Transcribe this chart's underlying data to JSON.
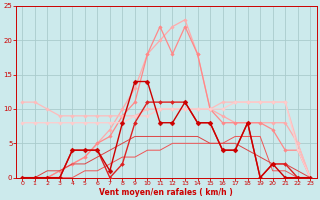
{
  "bg_color": "#cceaec",
  "grid_color": "#aacccc",
  "text_color": "#cc0000",
  "xlabel": "Vent moyen/en rafales ( km/h )",
  "xlim": [
    -0.5,
    23.5
  ],
  "ylim": [
    0,
    25
  ],
  "yticks": [
    0,
    5,
    10,
    15,
    20,
    25
  ],
  "xticks": [
    0,
    1,
    2,
    3,
    4,
    5,
    6,
    7,
    8,
    9,
    10,
    11,
    12,
    13,
    14,
    15,
    16,
    17,
    18,
    19,
    20,
    21,
    22,
    23
  ],
  "series": [
    {
      "x": [
        0,
        1,
        2,
        3,
        4,
        5,
        6,
        7,
        8,
        9,
        10,
        11,
        12,
        13,
        14,
        15,
        16,
        17,
        18,
        19,
        20,
        21,
        22,
        23
      ],
      "y": [
        0,
        0,
        0,
        1,
        2,
        3,
        5,
        7,
        10,
        13,
        18,
        20,
        22,
        23,
        18,
        10,
        9,
        8,
        8,
        8,
        8,
        8,
        5,
        0
      ],
      "color": "#ffaaaa",
      "lw": 0.9,
      "marker": "D",
      "ms": 1.8,
      "zorder": 2
    },
    {
      "x": [
        0,
        1,
        2,
        3,
        4,
        5,
        6,
        7,
        8,
        9,
        10,
        11,
        12,
        13,
        14,
        15,
        16,
        17,
        18,
        19,
        20,
        21,
        22,
        23
      ],
      "y": [
        0,
        0,
        0,
        1,
        2,
        3,
        5,
        6,
        9,
        11,
        18,
        22,
        18,
        22,
        18,
        10,
        8,
        8,
        8,
        8,
        7,
        4,
        4,
        0
      ],
      "color": "#ff8888",
      "lw": 0.9,
      "marker": "D",
      "ms": 1.8,
      "zorder": 2
    },
    {
      "x": [
        0,
        1,
        2,
        3,
        4,
        5,
        6,
        7,
        8,
        9,
        10,
        11,
        12,
        13,
        14,
        15,
        16,
        17,
        18,
        19,
        20,
        21,
        22,
        23
      ],
      "y": [
        11,
        11,
        10,
        9,
        9,
        9,
        9,
        9,
        9,
        9,
        10,
        10,
        10,
        10,
        10,
        10,
        11,
        11,
        11,
        11,
        11,
        11,
        5,
        0
      ],
      "color": "#ffbbbb",
      "lw": 0.9,
      "marker": "D",
      "ms": 1.8,
      "zorder": 3
    },
    {
      "x": [
        0,
        1,
        2,
        3,
        4,
        5,
        6,
        7,
        8,
        9,
        10,
        11,
        12,
        13,
        14,
        15,
        16,
        17,
        18,
        19,
        20,
        21,
        22,
        23
      ],
      "y": [
        8,
        8,
        8,
        8,
        8,
        8,
        8,
        8,
        8,
        9,
        9,
        10,
        10,
        10,
        10,
        10,
        10,
        11,
        11,
        11,
        11,
        11,
        4,
        0
      ],
      "color": "#ffcccc",
      "lw": 0.9,
      "marker": "D",
      "ms": 1.8,
      "zorder": 3
    },
    {
      "x": [
        0,
        1,
        2,
        3,
        4,
        5,
        6,
        7,
        8,
        9,
        10,
        11,
        12,
        13,
        14,
        15,
        16,
        17,
        18,
        19,
        20,
        21,
        22,
        23
      ],
      "y": [
        0,
        0,
        0,
        0,
        4,
        4,
        4,
        1,
        8,
        14,
        14,
        8,
        8,
        11,
        8,
        8,
        4,
        4,
        8,
        0,
        2,
        0,
        0,
        0
      ],
      "color": "#cc0000",
      "lw": 1.0,
      "marker": "D",
      "ms": 2.5,
      "zorder": 5
    },
    {
      "x": [
        0,
        1,
        2,
        3,
        4,
        5,
        6,
        7,
        8,
        9,
        10,
        11,
        12,
        13,
        14,
        15,
        16,
        17,
        18,
        19,
        20,
        21,
        22,
        23
      ],
      "y": [
        0,
        0,
        0,
        0,
        4,
        4,
        4,
        0,
        2,
        8,
        11,
        11,
        11,
        11,
        8,
        8,
        4,
        4,
        8,
        0,
        2,
        2,
        0,
        0
      ],
      "color": "#dd2222",
      "lw": 1.0,
      "marker": "D",
      "ms": 2.0,
      "zorder": 4
    },
    {
      "x": [
        0,
        1,
        2,
        3,
        4,
        5,
        6,
        7,
        8,
        9,
        10,
        11,
        12,
        13,
        14,
        15,
        16,
        17,
        18,
        19,
        20,
        21,
        22,
        23
      ],
      "y": [
        0,
        0,
        0,
        0,
        0,
        1,
        1,
        2,
        3,
        3,
        4,
        4,
        5,
        5,
        5,
        5,
        5,
        6,
        6,
        6,
        1,
        1,
        0,
        0
      ],
      "color": "#ee5555",
      "lw": 0.7,
      "marker": null,
      "ms": 0,
      "zorder": 2
    },
    {
      "x": [
        0,
        1,
        2,
        3,
        4,
        5,
        6,
        7,
        8,
        9,
        10,
        11,
        12,
        13,
        14,
        15,
        16,
        17,
        18,
        19,
        20,
        21,
        22,
        23
      ],
      "y": [
        0,
        0,
        1,
        1,
        2,
        2,
        3,
        4,
        5,
        6,
        6,
        6,
        6,
        6,
        6,
        5,
        5,
        5,
        4,
        3,
        2,
        2,
        1,
        0
      ],
      "color": "#dd4444",
      "lw": 0.7,
      "marker": null,
      "ms": 0,
      "zorder": 2
    }
  ]
}
